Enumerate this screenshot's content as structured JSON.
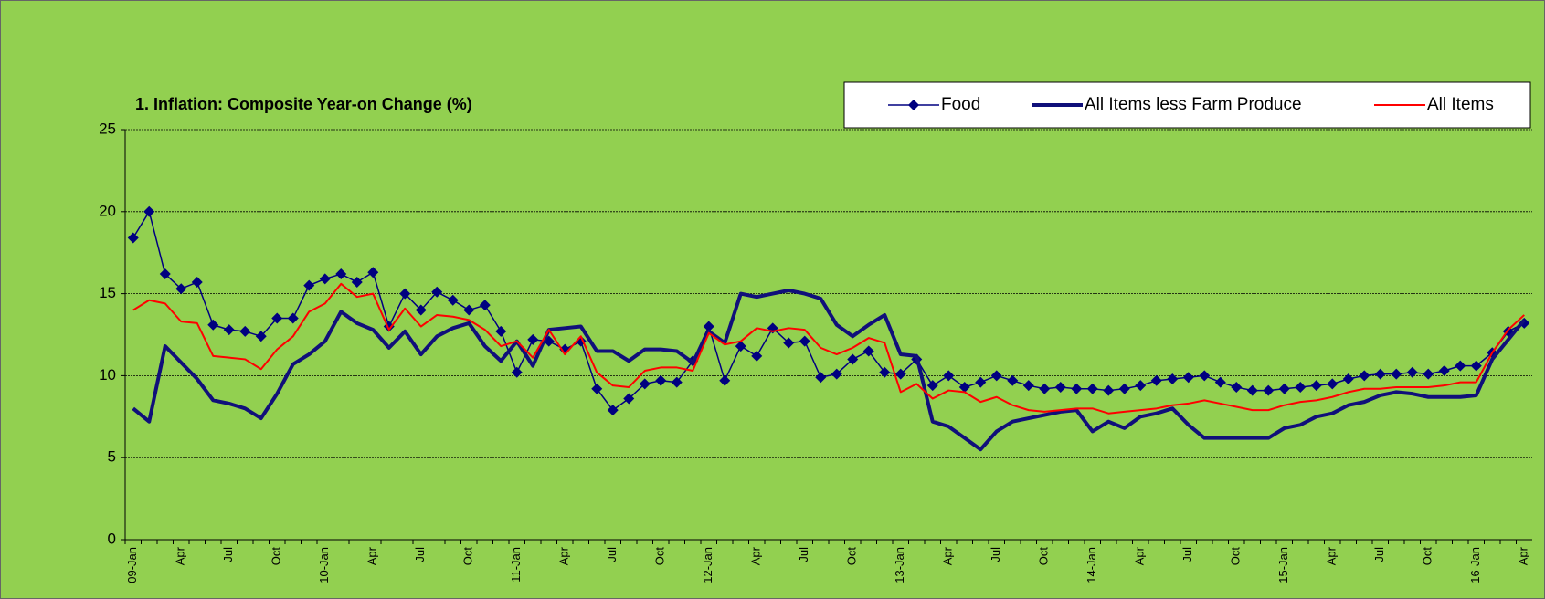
{
  "chart_data": {
    "type": "line",
    "title": "1. Inflation: Composite Year-on Change (%)",
    "categories": [
      "09-Jan",
      null,
      null,
      "Apr",
      null,
      null,
      "Jul",
      null,
      null,
      "Oct",
      null,
      null,
      "10-Jan",
      null,
      null,
      "Apr",
      null,
      null,
      "Jul",
      null,
      null,
      "Oct",
      null,
      null,
      "11-Jan",
      null,
      null,
      "Apr",
      null,
      null,
      "Jul",
      null,
      null,
      "Oct",
      null,
      null,
      "12-Jan",
      null,
      null,
      "Apr",
      null,
      null,
      "Jul",
      null,
      null,
      "Oct",
      null,
      null,
      "13-Jan",
      null,
      null,
      "Apr",
      null,
      null,
      "Jul",
      null,
      null,
      "Oct",
      null,
      null,
      "14-Jan",
      null,
      null,
      "Apr",
      null,
      null,
      "Jul",
      null,
      null,
      "Oct",
      null,
      null,
      "15-Jan",
      null,
      null,
      "Apr",
      null,
      null,
      "Jul",
      null,
      null,
      "Oct",
      null,
      null,
      "16-Jan",
      null,
      null,
      "Apr"
    ],
    "series": [
      {
        "name": "Food",
        "color": "#000080",
        "marker": "diamond",
        "width": 1.5,
        "values": [
          18.4,
          20.0,
          16.2,
          15.3,
          15.7,
          13.1,
          12.8,
          12.7,
          12.4,
          13.5,
          13.5,
          15.5,
          15.9,
          16.2,
          15.7,
          16.3,
          13.0,
          15.0,
          14.0,
          15.1,
          14.6,
          14.0,
          14.3,
          12.7,
          10.2,
          12.2,
          12.1,
          11.6,
          12.1,
          9.2,
          7.9,
          8.6,
          9.5,
          9.7,
          9.6,
          10.9,
          13.0,
          9.7,
          11.8,
          11.2,
          12.9,
          12.0,
          12.1,
          9.9,
          10.1,
          11.0,
          11.5,
          10.2,
          10.1,
          11.0,
          9.4,
          10.0,
          9.3,
          9.6,
          10.0,
          9.7,
          9.4,
          9.2,
          9.3,
          9.2,
          9.2,
          9.1,
          9.2,
          9.4,
          9.7,
          9.8,
          9.9,
          10.0,
          9.6,
          9.3,
          9.1,
          9.1,
          9.2,
          9.3,
          9.4,
          9.5,
          9.8,
          10.0,
          10.1,
          10.1,
          10.2,
          10.1,
          10.3,
          10.6,
          10.6,
          11.4,
          12.7,
          13.2
        ]
      },
      {
        "name": "All Items less Farm Produce",
        "color": "#10107a",
        "width": 4,
        "values": [
          8.0,
          7.2,
          11.8,
          10.8,
          9.8,
          8.5,
          8.3,
          8.0,
          7.4,
          8.9,
          10.7,
          11.3,
          12.1,
          13.9,
          13.2,
          12.8,
          11.7,
          12.7,
          11.3,
          12.4,
          12.9,
          13.2,
          11.8,
          10.9,
          12.1,
          10.6,
          12.8,
          12.9,
          13.0,
          11.5,
          11.5,
          10.9,
          11.6,
          11.6,
          11.5,
          10.8,
          12.7,
          12.0,
          15.0,
          14.8,
          15.0,
          15.2,
          15.0,
          14.7,
          13.1,
          12.4,
          13.1,
          13.7,
          11.3,
          11.2,
          7.2,
          6.9,
          6.2,
          5.5,
          6.6,
          7.2,
          7.4,
          7.6,
          7.8,
          7.9,
          6.6,
          7.2,
          6.8,
          7.5,
          7.7,
          8.0,
          7.0,
          6.2,
          6.2,
          6.2,
          6.2,
          6.2,
          6.8,
          7.0,
          7.5,
          7.7,
          8.2,
          8.4,
          8.8,
          9.0,
          8.9,
          8.7,
          8.7,
          8.7,
          8.8,
          11.0,
          12.2,
          13.4
        ]
      },
      {
        "name": "All Items",
        "color": "#ff0000",
        "width": 2,
        "values": [
          14.0,
          14.6,
          14.4,
          13.3,
          13.2,
          11.2,
          11.1,
          11.0,
          10.4,
          11.6,
          12.4,
          13.9,
          14.4,
          15.6,
          14.8,
          15.0,
          12.8,
          14.1,
          13.0,
          13.7,
          13.6,
          13.4,
          12.8,
          11.8,
          12.1,
          11.1,
          12.8,
          11.3,
          12.4,
          10.2,
          9.4,
          9.3,
          10.3,
          10.5,
          10.5,
          10.3,
          12.6,
          11.9,
          12.1,
          12.9,
          12.7,
          12.9,
          12.8,
          11.7,
          11.3,
          11.7,
          12.3,
          12.0,
          9.0,
          9.5,
          8.6,
          9.1,
          9.0,
          8.4,
          8.7,
          8.2,
          7.9,
          7.8,
          7.9,
          8.0,
          8.0,
          7.7,
          7.8,
          7.9,
          8.0,
          8.2,
          8.3,
          8.5,
          8.3,
          8.1,
          7.9,
          7.9,
          8.2,
          8.4,
          8.5,
          8.7,
          9.0,
          9.2,
          9.2,
          9.3,
          9.3,
          9.3,
          9.4,
          9.6,
          9.6,
          11.4,
          12.8,
          13.7
        ]
      }
    ],
    "ylim": [
      0,
      25
    ],
    "yticks": [
      0,
      5,
      10,
      15,
      20,
      25
    ],
    "grid": true,
    "legend_position": "top-right"
  }
}
